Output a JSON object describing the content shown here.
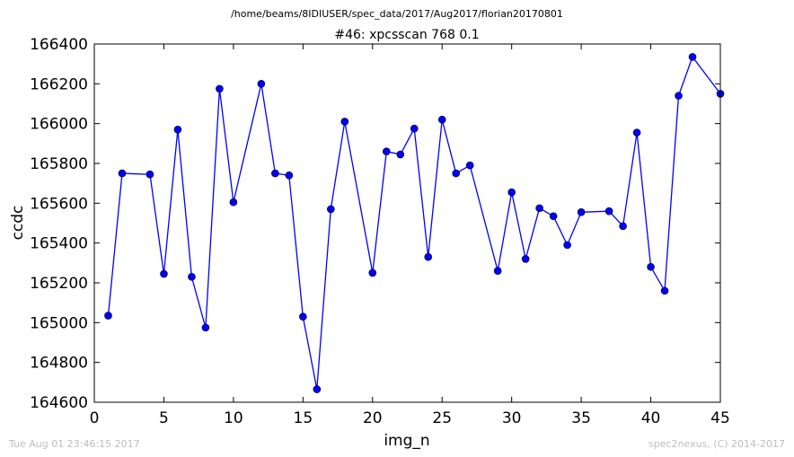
{
  "header": {
    "path": "/home/beams/8IDIUSER/spec_data/2017/Aug2017/florian20170801"
  },
  "footer": {
    "timestamp": "Tue Aug 01 23:46:15 2017",
    "credit": "spec2nexus, (C) 2014-2017"
  },
  "chart_data": {
    "type": "line",
    "title": "#46: xpcsscan 768 0.1",
    "xlabel": "img_n",
    "ylabel": "ccdc",
    "xlim": [
      0,
      45
    ],
    "ylim": [
      164600,
      166400
    ],
    "x_ticks": [
      "0",
      "5",
      "10",
      "15",
      "20",
      "25",
      "30",
      "35",
      "40",
      "45"
    ],
    "y_ticks": [
      "164600",
      "164800",
      "165000",
      "165200",
      "165400",
      "165600",
      "165800",
      "166000",
      "166200",
      "166400"
    ],
    "marker": "circle",
    "line_color": "#0000ff",
    "grid": false,
    "series": [
      {
        "x": [
          1,
          2,
          4,
          5,
          6,
          7,
          8,
          9,
          10,
          12,
          13,
          14,
          15,
          16,
          17,
          18,
          20,
          21,
          22,
          23,
          24,
          25,
          26,
          27,
          29,
          30,
          31,
          32,
          33,
          34,
          35,
          37,
          38,
          39,
          40,
          41,
          42,
          43,
          45
        ],
        "y": [
          165035,
          165750,
          165745,
          165245,
          165970,
          165230,
          164975,
          166175,
          165605,
          166200,
          165750,
          165740,
          165030,
          164665,
          165570,
          166010,
          165250,
          165860,
          165845,
          165975,
          165330,
          166020,
          165750,
          165790,
          165260,
          165655,
          165320,
          165575,
          165535,
          165390,
          165555,
          165560,
          165485,
          165955,
          165280,
          165160,
          166140,
          166335,
          166150
        ]
      }
    ]
  }
}
